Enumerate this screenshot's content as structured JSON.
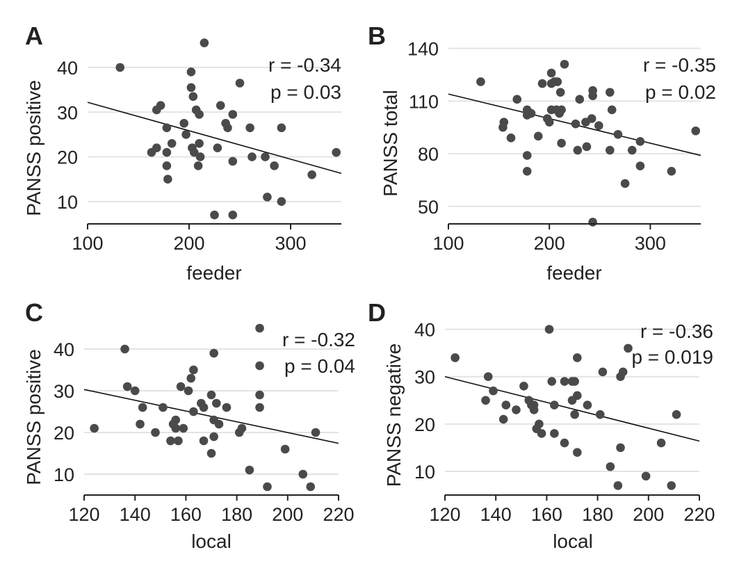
{
  "colors": {
    "points": "#4a4a4a",
    "fit_line": "#111111",
    "grid": "#e3e3e3",
    "text": "#222222"
  },
  "chart_data": [
    {
      "panel": "A",
      "type": "scatter",
      "xlabel": "feeder",
      "ylabel": "PANSS positive",
      "xlim": [
        100,
        350
      ],
      "ylim": [
        5,
        47
      ],
      "xticks": [
        100,
        200,
        300
      ],
      "yticks": [
        10,
        20,
        30,
        40
      ],
      "grid": "horizontal",
      "stats": {
        "r": "r = -0.34",
        "p": "p = 0.03"
      },
      "fit": {
        "x": [
          100,
          350
        ],
        "y": [
          32.2,
          16.3
        ]
      },
      "points": [
        [
          132,
          40
        ],
        [
          215,
          45.5
        ],
        [
          202,
          39
        ],
        [
          250,
          36.5
        ],
        [
          202,
          35.5
        ],
        [
          204,
          33.5
        ],
        [
          168,
          30.5
        ],
        [
          172,
          31.5
        ],
        [
          207,
          30.5
        ],
        [
          210,
          29.5
        ],
        [
          231,
          31.5
        ],
        [
          243,
          29.5
        ],
        [
          236,
          27.5
        ],
        [
          238,
          26.5
        ],
        [
          195,
          27.5
        ],
        [
          178,
          26.5
        ],
        [
          260,
          26.5
        ],
        [
          291,
          26.5
        ],
        [
          197,
          25
        ],
        [
          183,
          23
        ],
        [
          210,
          23
        ],
        [
          203,
          22
        ],
        [
          228,
          22
        ],
        [
          168,
          22
        ],
        [
          163,
          21
        ],
        [
          205,
          21
        ],
        [
          178,
          21
        ],
        [
          211,
          20
        ],
        [
          262,
          20
        ],
        [
          275,
          20
        ],
        [
          243,
          19
        ],
        [
          284,
          18
        ],
        [
          178,
          18
        ],
        [
          209,
          18
        ],
        [
          345,
          21
        ],
        [
          321,
          16
        ],
        [
          179,
          15
        ],
        [
          277,
          11
        ],
        [
          291,
          10
        ],
        [
          225,
          7
        ],
        [
          243,
          7
        ]
      ]
    },
    {
      "panel": "B",
      "type": "scatter",
      "xlabel": "feeder",
      "ylabel": "PANSS total",
      "xlim": [
        100,
        350
      ],
      "ylim": [
        40,
        147
      ],
      "xticks": [
        100,
        200,
        300
      ],
      "yticks": [
        50,
        80,
        110,
        140
      ],
      "grid": "horizontal",
      "stats": {
        "r": "r = -0.35",
        "p": "p = 0.02"
      },
      "fit": {
        "x": [
          100,
          350
        ],
        "y": [
          114,
          79
        ]
      },
      "points": [
        [
          215,
          131
        ],
        [
          202,
          126
        ],
        [
          205,
          121
        ],
        [
          208,
          121
        ],
        [
          193,
          120
        ],
        [
          202,
          120
        ],
        [
          132,
          121
        ],
        [
          211,
          115
        ],
        [
          243,
          116
        ],
        [
          243,
          113
        ],
        [
          260,
          115
        ],
        [
          230,
          111
        ],
        [
          168,
          111
        ],
        [
          178,
          105
        ],
        [
          202,
          105
        ],
        [
          207,
          105
        ],
        [
          212,
          105
        ],
        [
          262,
          105
        ],
        [
          182,
          103
        ],
        [
          210,
          103
        ],
        [
          178,
          102
        ],
        [
          198,
          100
        ],
        [
          155,
          98
        ],
        [
          242,
          100
        ],
        [
          200,
          98
        ],
        [
          226,
          97
        ],
        [
          236,
          98
        ],
        [
          249,
          96
        ],
        [
          154,
          95
        ],
        [
          189,
          90
        ],
        [
          268,
          91
        ],
        [
          162,
          89
        ],
        [
          212,
          86
        ],
        [
          290,
          87
        ],
        [
          237,
          84
        ],
        [
          228,
          82
        ],
        [
          260,
          82
        ],
        [
          282,
          82
        ],
        [
          178,
          79
        ],
        [
          290,
          73
        ],
        [
          178,
          70
        ],
        [
          321,
          70
        ],
        [
          275,
          63
        ],
        [
          345,
          93
        ],
        [
          243,
          41
        ]
      ]
    },
    {
      "panel": "C",
      "type": "scatter",
      "xlabel": "local",
      "ylabel": "PANSS positive",
      "xlim": [
        120,
        220
      ],
      "ylim": [
        5,
        47
      ],
      "xticks": [
        120,
        140,
        160,
        180,
        200,
        220
      ],
      "yticks": [
        10,
        20,
        30,
        40
      ],
      "grid": "horizontal",
      "stats": {
        "r": "r = -0.32",
        "p": "p = 0.04"
      },
      "fit": {
        "x": [
          120,
          220
        ],
        "y": [
          30.3,
          17.4
        ]
      },
      "points": [
        [
          124,
          21
        ],
        [
          136,
          40
        ],
        [
          137,
          31
        ],
        [
          140,
          30
        ],
        [
          143,
          26
        ],
        [
          142,
          22
        ],
        [
          148,
          20
        ],
        [
          151,
          26
        ],
        [
          154,
          18
        ],
        [
          155,
          22
        ],
        [
          156,
          23
        ],
        [
          156,
          21
        ],
        [
          157,
          18
        ],
        [
          158,
          31
        ],
        [
          159,
          21
        ],
        [
          161,
          30
        ],
        [
          162,
          33
        ],
        [
          163,
          35
        ],
        [
          163,
          25
        ],
        [
          166,
          27
        ],
        [
          167,
          26
        ],
        [
          167,
          18
        ],
        [
          170,
          29
        ],
        [
          170,
          15
        ],
        [
          171,
          23
        ],
        [
          171,
          19
        ],
        [
          171,
          39
        ],
        [
          172,
          27
        ],
        [
          173,
          22
        ],
        [
          176,
          26
        ],
        [
          181,
          20
        ],
        [
          182,
          21
        ],
        [
          185,
          11
        ],
        [
          189,
          45
        ],
        [
          189,
          36
        ],
        [
          189,
          29
        ],
        [
          189,
          26
        ],
        [
          192,
          7
        ],
        [
          199,
          16
        ],
        [
          206,
          10
        ],
        [
          209,
          7
        ],
        [
          211,
          20
        ]
      ]
    },
    {
      "panel": "D",
      "type": "scatter",
      "xlabel": "local",
      "ylabel": "PANSS negative",
      "xlim": [
        120,
        220
      ],
      "ylim": [
        5,
        42
      ],
      "xticks": [
        120,
        140,
        160,
        180,
        200,
        220
      ],
      "yticks": [
        10,
        20,
        30,
        40
      ],
      "grid": "horizontal",
      "stats": {
        "r": "r = -0.36",
        "p": "p = 0.019"
      },
      "fit": {
        "x": [
          120,
          220
        ],
        "y": [
          30,
          16.4
        ]
      },
      "points": [
        [
          124,
          34
        ],
        [
          136,
          25
        ],
        [
          137,
          30
        ],
        [
          139,
          27
        ],
        [
          143,
          21
        ],
        [
          144,
          24
        ],
        [
          148,
          23
        ],
        [
          151,
          28
        ],
        [
          153,
          25
        ],
        [
          154,
          24
        ],
        [
          155,
          24
        ],
        [
          155,
          23
        ],
        [
          156,
          19
        ],
        [
          157,
          20
        ],
        [
          158,
          18
        ],
        [
          161,
          40
        ],
        [
          162,
          29
        ],
        [
          163,
          24
        ],
        [
          163,
          18
        ],
        [
          167,
          29
        ],
        [
          167,
          16
        ],
        [
          170,
          29
        ],
        [
          170,
          25
        ],
        [
          171,
          29
        ],
        [
          171,
          22
        ],
        [
          172,
          34
        ],
        [
          172,
          26
        ],
        [
          172,
          14
        ],
        [
          176,
          24
        ],
        [
          181,
          22
        ],
        [
          182,
          31
        ],
        [
          185,
          11
        ],
        [
          188,
          7
        ],
        [
          189,
          30
        ],
        [
          189,
          15
        ],
        [
          190,
          31
        ],
        [
          192,
          36
        ],
        [
          199,
          9
        ],
        [
          205,
          16
        ],
        [
          209,
          7
        ],
        [
          211,
          22
        ]
      ]
    }
  ]
}
